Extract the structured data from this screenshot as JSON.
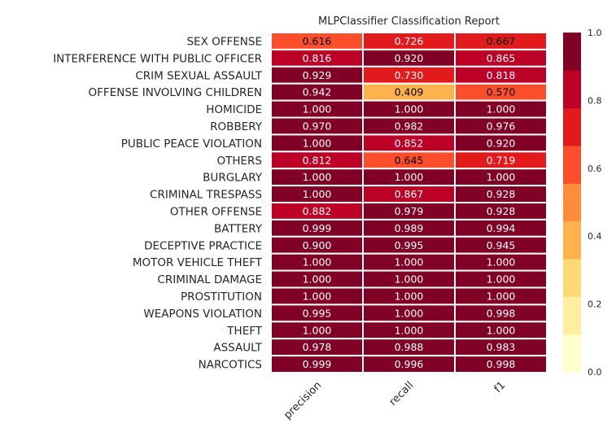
{
  "chart_data": {
    "type": "heatmap",
    "title": "MLPClassifier Classification Report",
    "columns": [
      "precision",
      "recall",
      "f1"
    ],
    "rows": [
      {
        "label": "SEX OFFENSE",
        "values": [
          "0.616",
          "0.726",
          "0.667"
        ]
      },
      {
        "label": "INTERFERENCE WITH PUBLIC OFFICER",
        "values": [
          "0.816",
          "0.920",
          "0.865"
        ]
      },
      {
        "label": "CRIM SEXUAL ASSAULT",
        "values": [
          "0.929",
          "0.730",
          "0.818"
        ]
      },
      {
        "label": "OFFENSE INVOLVING CHILDREN",
        "values": [
          "0.942",
          "0.409",
          "0.570"
        ]
      },
      {
        "label": "HOMICIDE",
        "values": [
          "1.000",
          "1.000",
          "1.000"
        ]
      },
      {
        "label": "ROBBERY",
        "values": [
          "0.970",
          "0.982",
          "0.976"
        ]
      },
      {
        "label": "PUBLIC PEACE VIOLATION",
        "values": [
          "1.000",
          "0.852",
          "0.920"
        ]
      },
      {
        "label": "OTHERS",
        "values": [
          "0.812",
          "0.645",
          "0.719"
        ]
      },
      {
        "label": "BURGLARY",
        "values": [
          "1.000",
          "1.000",
          "1.000"
        ]
      },
      {
        "label": "CRIMINAL TRESPASS",
        "values": [
          "1.000",
          "0.867",
          "0.928"
        ]
      },
      {
        "label": "OTHER OFFENSE",
        "values": [
          "0.882",
          "0.979",
          "0.928"
        ]
      },
      {
        "label": "BATTERY",
        "values": [
          "0.999",
          "0.989",
          "0.994"
        ]
      },
      {
        "label": "DECEPTIVE PRACTICE",
        "values": [
          "0.900",
          "0.995",
          "0.945"
        ]
      },
      {
        "label": "MOTOR VEHICLE THEFT",
        "values": [
          "1.000",
          "1.000",
          "1.000"
        ]
      },
      {
        "label": "CRIMINAL DAMAGE",
        "values": [
          "1.000",
          "1.000",
          "1.000"
        ]
      },
      {
        "label": "PROSTITUTION",
        "values": [
          "1.000",
          "1.000",
          "1.000"
        ]
      },
      {
        "label": "WEAPONS VIOLATION",
        "values": [
          "0.995",
          "1.000",
          "0.998"
        ]
      },
      {
        "label": "THEFT",
        "values": [
          "1.000",
          "1.000",
          "1.000"
        ]
      },
      {
        "label": "ASSAULT",
        "values": [
          "0.978",
          "0.988",
          "0.983"
        ]
      },
      {
        "label": "NARCOTICS",
        "values": [
          "0.999",
          "0.996",
          "0.998"
        ]
      }
    ],
    "colorbar": {
      "range": [
        0.0,
        1.0
      ],
      "tick_labels": [
        "0.0",
        "0.2",
        "0.4",
        "0.6",
        "0.8",
        "1.0"
      ],
      "bins": 9,
      "colors": [
        "#ffffcc",
        "#ffeda0",
        "#fed976",
        "#feb24c",
        "#fd8d3c",
        "#fc4e2a",
        "#e31a1c",
        "#bd0026",
        "#800026"
      ]
    },
    "legend": "colorbar right",
    "grid": false
  }
}
